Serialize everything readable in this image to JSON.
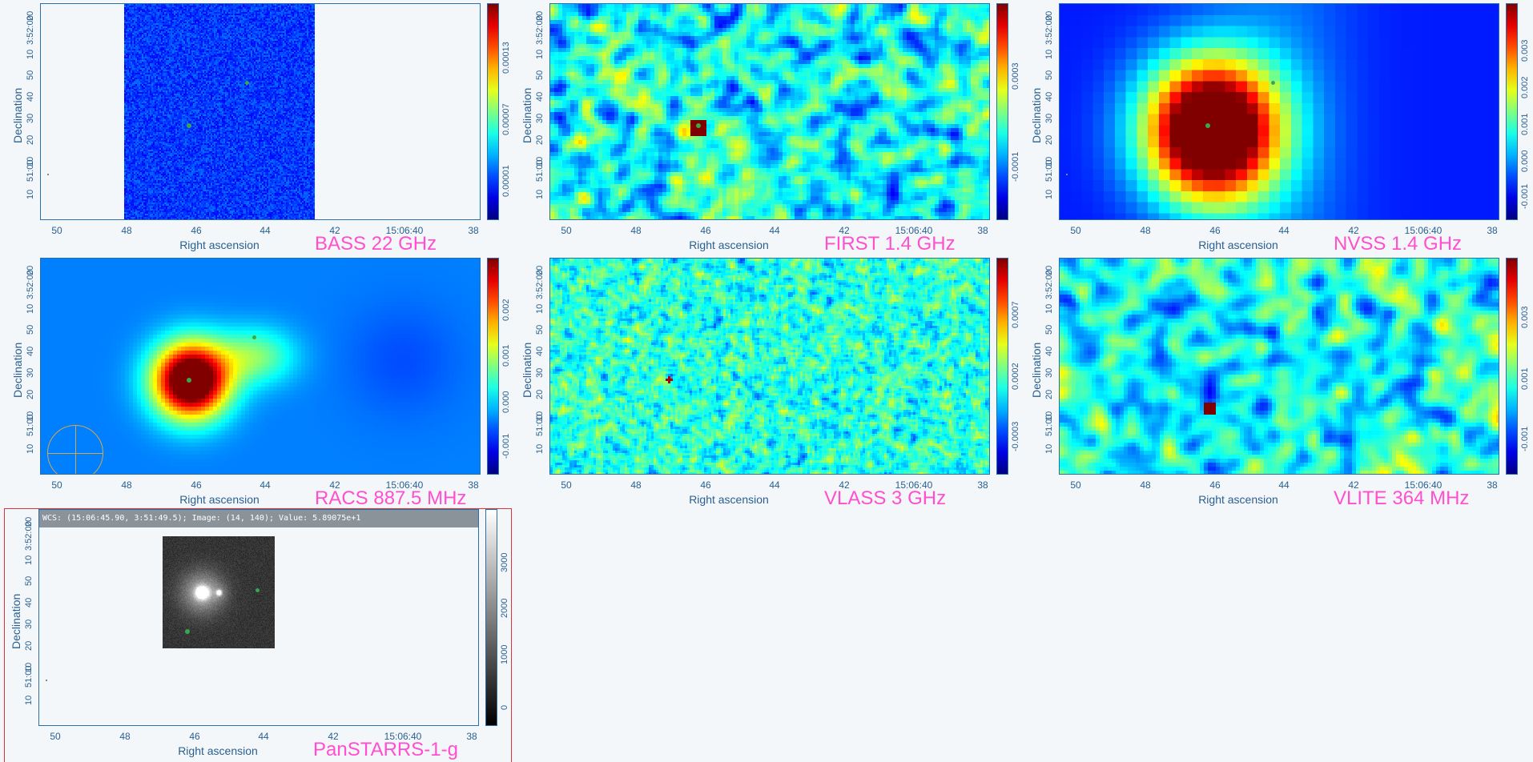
{
  "axes": {
    "xlabel": "Right ascension",
    "ylabel": "Declination",
    "ra_ticks": [
      "50",
      "48",
      "46",
      "44",
      "42",
      "15:06:40",
      "38"
    ],
    "dec_ticks": [
      "20",
      "3:52:00",
      "10",
      "50",
      "40",
      "30",
      "20",
      "10",
      "51:00",
      "10"
    ]
  },
  "panels": [
    {
      "title": "BASS 22 GHz",
      "colorbar_ticks": [
        "0.00013",
        "0.00007",
        "0.00001"
      ],
      "colormap": "jet",
      "active": false
    },
    {
      "title": "FIRST 1.4 GHz",
      "colorbar_ticks": [
        "0.0003",
        "-0.0001"
      ],
      "colormap": "jet",
      "active": false
    },
    {
      "title": "NVSS 1.4 GHz",
      "colorbar_ticks": [
        "0.003",
        "0.002",
        "0.001",
        "0.000",
        "-0.001"
      ],
      "colormap": "jet",
      "active": false
    },
    {
      "title": "RACS 887.5 MHz",
      "colorbar_ticks": [
        "0.002",
        "0.001",
        "0.000",
        "-0.001"
      ],
      "colormap": "jet",
      "active": false
    },
    {
      "title": "VLASS 3 GHz",
      "colorbar_ticks": [
        "0.0007",
        "0.0002",
        "-0.0003"
      ],
      "colormap": "jet",
      "active": false
    },
    {
      "title": "VLITE 364 MHz",
      "colorbar_ticks": [
        "0.003",
        "0.001",
        "-0.001"
      ],
      "colormap": "jet",
      "active": false
    },
    {
      "title": "PanSTARRS-1-g",
      "colorbar_ticks": [
        "3000",
        "2000",
        "1000",
        "0"
      ],
      "colormap": "gray",
      "active": true,
      "wcs_readout": "WCS: (15:06:45.90, 3:51:49.5); Image: (14, 140); Value:  5.89075e+1"
    }
  ],
  "colors": {
    "accent": "#2a6fa8",
    "title": "#ff4fd0",
    "marker": "#3aa84a",
    "active_border": "#e0303a"
  }
}
